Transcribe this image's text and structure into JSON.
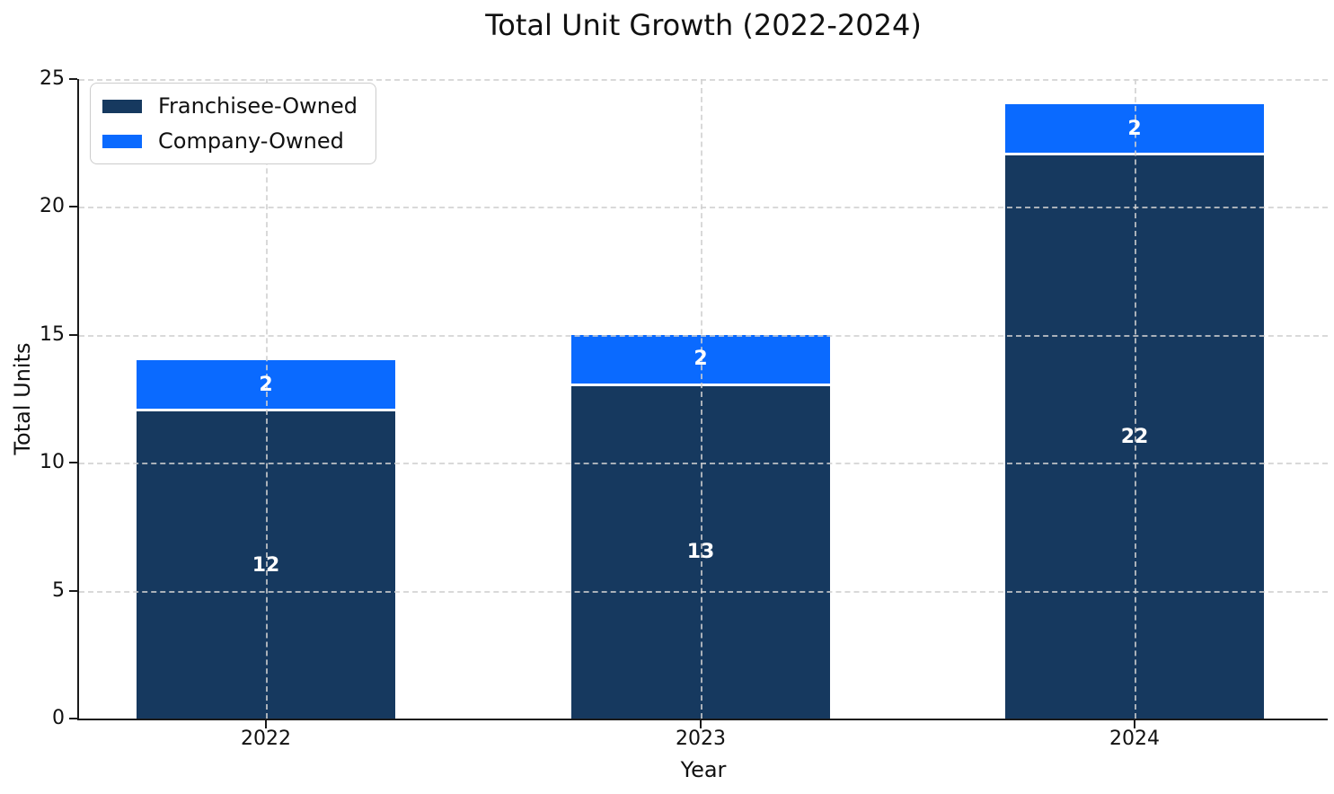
{
  "chart_data": {
    "type": "bar",
    "stacked": true,
    "title": "Total Unit Growth (2022-2024)",
    "xlabel": "Year",
    "ylabel": "Total Units",
    "categories": [
      "2022",
      "2023",
      "2024"
    ],
    "series": [
      {
        "name": "Franchisee-Owned",
        "color": "#16395f",
        "values": [
          12,
          13,
          22
        ]
      },
      {
        "name": "Company-Owned",
        "color": "#0a6aff",
        "values": [
          2,
          2,
          2
        ]
      }
    ],
    "yticks": [
      0,
      5,
      10,
      15,
      20,
      25
    ],
    "ylim": [
      0,
      25
    ],
    "grid": "dashed, light gray, drawn above bars",
    "legend_position": "upper-left",
    "bar_label_color": "#ffffff",
    "segment_divider_color": "#ffffff",
    "spine_color": "#1a1a1a"
  }
}
